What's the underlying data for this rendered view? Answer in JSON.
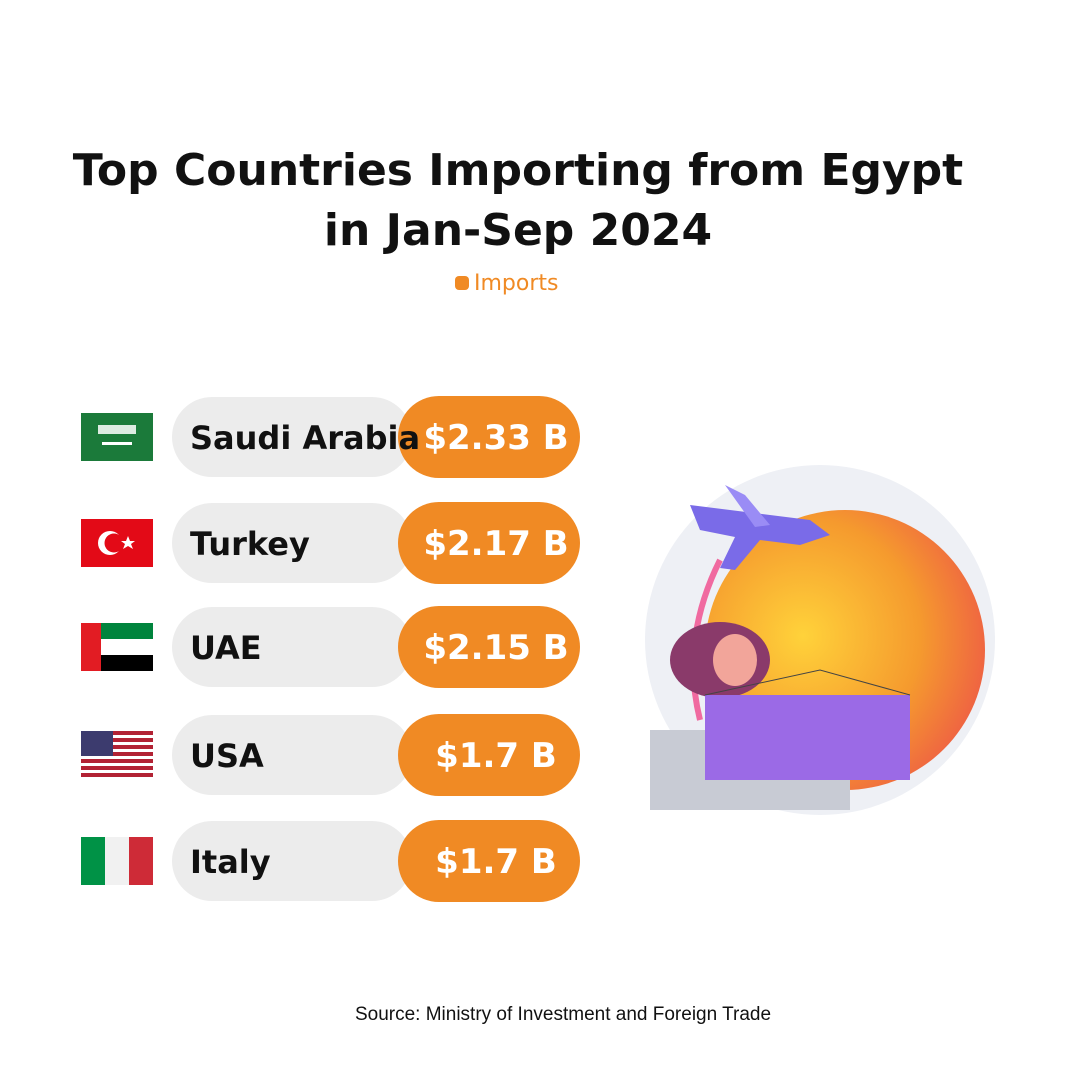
{
  "title": [
    "Top Countries Importing from Egypt",
    "in Jan-Sep 2024"
  ],
  "legend": "Imports",
  "items": [
    {
      "country": "Saudi Arabia",
      "value": "$2.33 B"
    },
    {
      "country": "Turkey",
      "value": "$2.17 B"
    },
    {
      "country": "UAE",
      "value": "$2.15 B"
    },
    {
      "country": "USA",
      "value": "$1.7 B"
    },
    {
      "country": "Italy",
      "value": "$1.7 B"
    }
  ],
  "source": "Source: Ministry of Investment and Foreign Trade"
}
